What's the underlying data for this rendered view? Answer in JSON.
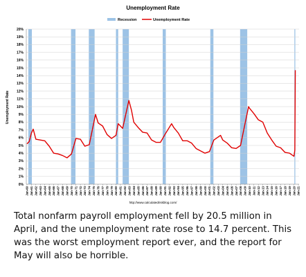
{
  "chart_data": {
    "type": "line",
    "title": "Unemployment Rate",
    "y_label": "Unemployment Rate",
    "source": "http://www.calculatedriskblog.com/",
    "xlim": [
      1959.85,
      2021.15
    ],
    "ylim": [
      0,
      20
    ],
    "grid": true,
    "yticks": [
      {
        "value": 0,
        "label": "0%"
      },
      {
        "value": 1,
        "label": "1%"
      },
      {
        "value": 2,
        "label": "2%"
      },
      {
        "value": 3,
        "label": "3%"
      },
      {
        "value": 4,
        "label": "4%"
      },
      {
        "value": 5,
        "label": "5%"
      },
      {
        "value": 6,
        "label": "6%"
      },
      {
        "value": 7,
        "label": "7%"
      },
      {
        "value": 8,
        "label": "8%"
      },
      {
        "value": 9,
        "label": "9%"
      },
      {
        "value": 10,
        "label": "10%"
      },
      {
        "value": 11,
        "label": "11%"
      },
      {
        "value": 12,
        "label": "12%"
      },
      {
        "value": 13,
        "label": "13%"
      },
      {
        "value": 14,
        "label": "14%"
      },
      {
        "value": 15,
        "label": "15%"
      },
      {
        "value": 16,
        "label": "16%"
      },
      {
        "value": 17,
        "label": "17%"
      },
      {
        "value": 18,
        "label": "18%"
      },
      {
        "value": 19,
        "label": "19%"
      },
      {
        "value": 20,
        "label": "20%"
      }
    ],
    "xticks": [
      {
        "value": 1960,
        "label": "Jan-60"
      },
      {
        "value": 1961,
        "label": "Jan-61"
      },
      {
        "value": 1962,
        "label": "Jan-62"
      },
      {
        "value": 1963,
        "label": "Jan-63"
      },
      {
        "value": 1964,
        "label": "Jan-64"
      },
      {
        "value": 1965,
        "label": "Jan-65"
      },
      {
        "value": 1966,
        "label": "Jan-66"
      },
      {
        "value": 1967,
        "label": "Jan-67"
      },
      {
        "value": 1968,
        "label": "Jan-68"
      },
      {
        "value": 1969,
        "label": "Jan-69"
      },
      {
        "value": 1970,
        "label": "Jan-70"
      },
      {
        "value": 1971,
        "label": "Jan-71"
      },
      {
        "value": 1972,
        "label": "Jan-72"
      },
      {
        "value": 1973,
        "label": "Jan-73"
      },
      {
        "value": 1974,
        "label": "Jan-74"
      },
      {
        "value": 1975,
        "label": "Jan-75"
      },
      {
        "value": 1976,
        "label": "Jan-76"
      },
      {
        "value": 1977,
        "label": "Jan-77"
      },
      {
        "value": 1978,
        "label": "Jan-78"
      },
      {
        "value": 1979,
        "label": "Jan-79"
      },
      {
        "value": 1980,
        "label": "Jan-80"
      },
      {
        "value": 1981,
        "label": "Jan-81"
      },
      {
        "value": 1982,
        "label": "Jan-82"
      },
      {
        "value": 1983,
        "label": "Jan-83"
      },
      {
        "value": 1984,
        "label": "Jan-84"
      },
      {
        "value": 1985,
        "label": "Jan-85"
      },
      {
        "value": 1986,
        "label": "Jan-86"
      },
      {
        "value": 1987,
        "label": "Jan-87"
      },
      {
        "value": 1988,
        "label": "Jan-88"
      },
      {
        "value": 1989,
        "label": "Jan-89"
      },
      {
        "value": 1990,
        "label": "Jan-90"
      },
      {
        "value": 1991,
        "label": "Jan-91"
      },
      {
        "value": 1992,
        "label": "Jan-92"
      },
      {
        "value": 1993,
        "label": "Jan-93"
      },
      {
        "value": 1994,
        "label": "Jan-94"
      },
      {
        "value": 1995,
        "label": "Jan-95"
      },
      {
        "value": 1996,
        "label": "Jan-96"
      },
      {
        "value": 1997,
        "label": "Jan-97"
      },
      {
        "value": 1998,
        "label": "Jan-98"
      },
      {
        "value": 1999,
        "label": "Jan-99"
      },
      {
        "value": 2000,
        "label": "Jan-00"
      },
      {
        "value": 2001,
        "label": "Jan-01"
      },
      {
        "value": 2002,
        "label": "Jan-02"
      },
      {
        "value": 2003,
        "label": "Jan-03"
      },
      {
        "value": 2004,
        "label": "Jan-04"
      },
      {
        "value": 2005,
        "label": "Jan-05"
      },
      {
        "value": 2006,
        "label": "Jan-06"
      },
      {
        "value": 2007,
        "label": "Jan-07"
      },
      {
        "value": 2008,
        "label": "Jan-08"
      },
      {
        "value": 2009,
        "label": "Jan-09"
      },
      {
        "value": 2010,
        "label": "Jan-10"
      },
      {
        "value": 2011,
        "label": "Jan-11"
      },
      {
        "value": 2012,
        "label": "Jan-12"
      },
      {
        "value": 2013,
        "label": "Jan-13"
      },
      {
        "value": 2014,
        "label": "Jan-14"
      },
      {
        "value": 2015,
        "label": "Jan-15"
      },
      {
        "value": 2016,
        "label": "Jan-16"
      },
      {
        "value": 2017,
        "label": "Jan-17"
      },
      {
        "value": 2018,
        "label": "Jan-18"
      },
      {
        "value": 2019,
        "label": "Jan-19"
      },
      {
        "value": 2020,
        "label": "Jan-20"
      },
      {
        "value": 2021,
        "label": "Jan-21"
      }
    ],
    "series": [
      {
        "name": "Recession",
        "color": "#9dc3e6",
        "ranges": [
          [
            1960.3,
            1961.1
          ],
          [
            1969.9,
            1970.9
          ],
          [
            1973.9,
            1975.2
          ],
          [
            1980.0,
            1980.5
          ],
          [
            1981.5,
            1982.9
          ],
          [
            1990.5,
            1991.2
          ],
          [
            2001.2,
            2001.9
          ],
          [
            2007.9,
            2009.5
          ],
          [
            2020.1,
            2020.3
          ]
        ]
      },
      {
        "name": "Unemployment Rate",
        "color": "#e00000",
        "x": [
          1960.0,
          1960.5,
          1961.0,
          1961.4,
          1962.0,
          1963.0,
          1964.0,
          1965.0,
          1966.0,
          1967.0,
          1968.0,
          1969.0,
          1970.0,
          1971.0,
          1972.0,
          1973.0,
          1974.0,
          1975.4,
          1976.0,
          1977.0,
          1978.0,
          1979.0,
          1980.0,
          1980.5,
          1981.0,
          1981.5,
          1982.9,
          1983.5,
          1984.0,
          1985.0,
          1986.0,
          1987.0,
          1988.0,
          1989.0,
          1990.0,
          1991.0,
          1992.5,
          1993.0,
          1994.0,
          1995.0,
          1996.0,
          1997.0,
          1998.0,
          1999.0,
          2000.0,
          2001.0,
          2002.0,
          2003.5,
          2004.0,
          2005.0,
          2006.0,
          2007.0,
          2008.0,
          2009.0,
          2009.8,
          2010.0,
          2011.0,
          2012.0,
          2013.0,
          2014.0,
          2015.0,
          2016.0,
          2017.0,
          2018.0,
          2019.0,
          2020.0,
          2020.2,
          2020.3
        ],
        "values": [
          5.2,
          5.5,
          6.6,
          7.1,
          5.8,
          5.7,
          5.6,
          4.9,
          4.0,
          3.9,
          3.7,
          3.4,
          3.9,
          5.9,
          5.8,
          4.9,
          5.1,
          9.0,
          7.9,
          7.5,
          6.4,
          5.9,
          6.3,
          7.8,
          7.5,
          7.2,
          10.8,
          9.5,
          8.0,
          7.3,
          6.7,
          6.6,
          5.7,
          5.4,
          5.4,
          6.4,
          7.8,
          7.3,
          6.6,
          5.6,
          5.6,
          5.3,
          4.6,
          4.3,
          4.0,
          4.2,
          5.7,
          6.3,
          5.7,
          5.3,
          4.7,
          4.6,
          5.0,
          7.8,
          10.0,
          9.8,
          9.1,
          8.3,
          8.0,
          6.6,
          5.7,
          4.9,
          4.7,
          4.1,
          4.0,
          3.6,
          4.4,
          14.7
        ]
      }
    ]
  },
  "caption": "Total nonfarm payroll employment fell by 20.5 million in April, and the unemployment rate rose to 14.7 percent. This was the worst employment report ever, and the report for May will also be horrible."
}
